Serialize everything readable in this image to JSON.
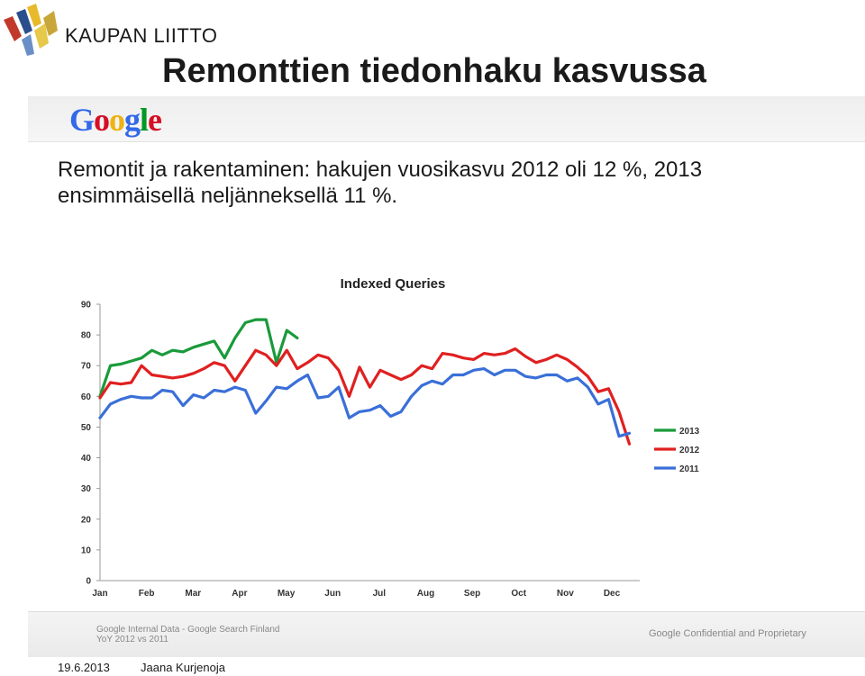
{
  "header": {
    "brand": "KAUPAN LIITTO",
    "title": "Remonttien tiedonhaku kasvussa"
  },
  "google_logo": {
    "letters": [
      "G",
      "o",
      "o",
      "g",
      "l",
      "e"
    ]
  },
  "description": {
    "line1": "Remontit ja rakentaminen: hakujen vuosikasvu 2012 oli 12 %, 2013",
    "line2": "ensimmäisellä neljänneksellä 11 %."
  },
  "colors": {
    "y2013": "#1a9a3a",
    "y2012": "#e02020",
    "y2011": "#3a6fd8"
  },
  "chart_data": {
    "type": "line",
    "title": "Indexed Queries",
    "xlabel": "",
    "ylabel": "",
    "ylim": [
      0,
      90
    ],
    "yticks": [
      0,
      10,
      20,
      30,
      40,
      50,
      60,
      70,
      80,
      90
    ],
    "month_labels": [
      "Jan",
      "Feb",
      "Mar",
      "Apr",
      "May",
      "Jun",
      "Jul",
      "Aug",
      "Sep",
      "Oct",
      "Nov",
      "Dec"
    ],
    "x_unit": "week",
    "x_range": [
      1,
      53
    ],
    "grid": false,
    "legend_position": "right",
    "series": [
      {
        "name": "2013",
        "color": "#1a9a3a",
        "values": [
          60,
          70,
          70.5,
          71.5,
          72.5,
          75,
          73.5,
          75,
          74.5,
          76,
          77,
          78,
          72.5,
          79,
          84,
          85,
          85,
          71,
          81.5,
          79
        ]
      },
      {
        "name": "2012",
        "color": "#e02020",
        "values": [
          59.5,
          64.5,
          64,
          64.5,
          70,
          67,
          66.5,
          66,
          66.5,
          67.5,
          69,
          71,
          70,
          65,
          70,
          75,
          73.5,
          70,
          75,
          69,
          71,
          73.5,
          72.5,
          68.5,
          60,
          69.5,
          63,
          68.5,
          67,
          65.5,
          67,
          70,
          69,
          74,
          73.5,
          72.5,
          72,
          74,
          73.5,
          74,
          75.5,
          73,
          71,
          72,
          73.5,
          72,
          69.5,
          66.5,
          61.5,
          62.5,
          55,
          44.5
        ]
      },
      {
        "name": "2011",
        "color": "#3a6fd8",
        "values": [
          53,
          57.5,
          59,
          60,
          59.5,
          59.5,
          62,
          61.5,
          57,
          60.5,
          59.5,
          62,
          61.5,
          63,
          62,
          54.5,
          58.5,
          63,
          62.5,
          65,
          67,
          59.5,
          60,
          63,
          53,
          55,
          55.5,
          57,
          53.5,
          55,
          60,
          63.5,
          65,
          64,
          67,
          67,
          68.5,
          69,
          67,
          68.5,
          68.5,
          66.5,
          66,
          67,
          67,
          65,
          66,
          63,
          57.5,
          59,
          47,
          48
        ]
      }
    ]
  },
  "footer": {
    "source_line1": "Google Internal Data - Google Search Finland",
    "source_line2": "YoY 2012 vs 2011",
    "confidential": "Google Confidential and Proprietary",
    "date": "19.6.2013",
    "author": "Jaana Kurjenoja"
  }
}
